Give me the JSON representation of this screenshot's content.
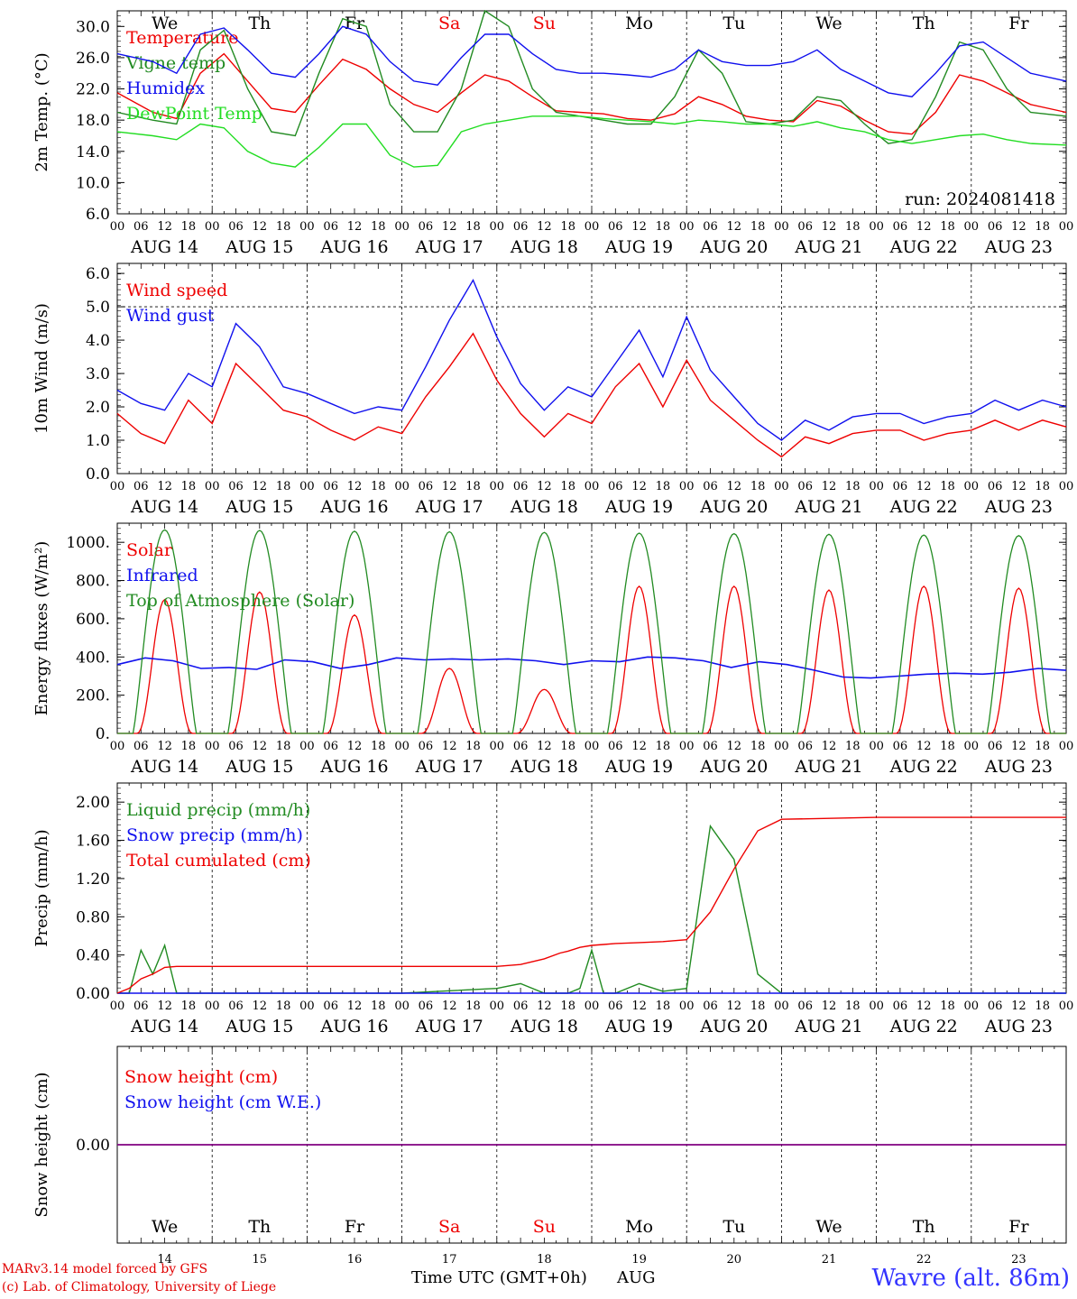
{
  "colors": {
    "red": "#ee0000",
    "green": "#228b22",
    "blue": "#1010ee",
    "light_green": "#22dd22",
    "purple": "#800080",
    "weekend": "#ee0000"
  },
  "days": {
    "weekday_labels": [
      "We",
      "Th",
      "Fr",
      "Sa",
      "Su",
      "Mo",
      "Tu",
      "We",
      "Th",
      "Fr"
    ],
    "weekend_flags": [
      false,
      false,
      false,
      true,
      true,
      false,
      false,
      false,
      false,
      false
    ],
    "date_labels": [
      "AUG 14",
      "AUG 15",
      "AUG 16",
      "AUG 17",
      "AUG 18",
      "AUG 19",
      "AUG 20",
      "AUG 21",
      "AUG 22",
      "AUG 23"
    ],
    "day_numbers": [
      "14",
      "15",
      "16",
      "17",
      "18",
      "19",
      "20",
      "21",
      "22",
      "23"
    ],
    "hour_ticks": [
      "00",
      "06",
      "12",
      "18"
    ],
    "final_tick": "00"
  },
  "footer": {
    "credit_line1": "MARv3.14 model forced by GFS",
    "credit_line2": "(c) Lab. of Climatology, University of Liege",
    "xaxis_title": "Time UTC (GMT+0h)",
    "xaxis_month": "AUG",
    "station": "Wavre (alt. 86m)"
  },
  "chart_data": [
    {
      "type": "line",
      "ylabel": "2m Temp. (°C)",
      "ylim": [
        6,
        32
      ],
      "yticks": [
        "30.0",
        "26.0",
        "22.0",
        "18.0",
        "14.0",
        "10.0",
        "6.0"
      ],
      "annotation": "run: 2024081418",
      "x": [
        0,
        9,
        15,
        21,
        27,
        33,
        39,
        45,
        51,
        57,
        63,
        69,
        75,
        81,
        87,
        93,
        99,
        105,
        111,
        117,
        123,
        129,
        135,
        141,
        147,
        153,
        159,
        165,
        171,
        177,
        183,
        189,
        195,
        201,
        207,
        213,
        219,
        225,
        231,
        240
      ],
      "series": [
        {
          "name": "Temperature",
          "color": "red",
          "values": [
            21.5,
            19.0,
            18.2,
            24.0,
            26.5,
            23.0,
            19.5,
            19.0,
            22.5,
            25.8,
            24.5,
            22.0,
            20.0,
            19.0,
            21.5,
            23.8,
            23.0,
            21.0,
            19.2,
            19.0,
            18.8,
            18.2,
            18.0,
            18.8,
            21.0,
            20.0,
            18.5,
            18.0,
            17.8,
            20.5,
            19.8,
            18.0,
            16.5,
            16.2,
            19.0,
            23.8,
            23.0,
            21.5,
            20.0,
            19.0
          ]
        },
        {
          "name": "Vigne temp",
          "color": "green",
          "values": [
            19.0,
            18.0,
            17.5,
            27.0,
            29.5,
            22.0,
            16.5,
            16.0,
            24.0,
            31.0,
            30.0,
            20.0,
            16.5,
            16.5,
            22.0,
            32.0,
            30.0,
            22.0,
            19.0,
            18.5,
            18.0,
            17.5,
            17.5,
            21.0,
            27.0,
            24.0,
            17.8,
            17.5,
            18.0,
            21.0,
            20.5,
            17.5,
            15.0,
            15.5,
            21.0,
            28.0,
            27.0,
            22.0,
            19.0,
            18.5
          ]
        },
        {
          "name": "Humidex",
          "color": "blue",
          "values": [
            26.5,
            25.5,
            24.0,
            29.0,
            29.8,
            27.0,
            24.0,
            23.5,
            26.5,
            30.0,
            29.0,
            25.5,
            23.0,
            22.5,
            26.0,
            29.0,
            29.0,
            26.5,
            24.5,
            24.0,
            24.0,
            23.8,
            23.5,
            24.5,
            27.0,
            25.5,
            25.0,
            25.0,
            25.5,
            27.0,
            24.5,
            23.0,
            21.5,
            21.0,
            24.0,
            27.5,
            28.0,
            26.0,
            24.0,
            23.0
          ]
        },
        {
          "name": "DewPoint Temp",
          "color": "light_green",
          "values": [
            16.5,
            16.0,
            15.5,
            17.5,
            17.0,
            14.0,
            12.5,
            12.0,
            14.5,
            17.5,
            17.5,
            13.5,
            12.0,
            12.2,
            16.5,
            17.5,
            18.0,
            18.5,
            18.5,
            18.5,
            18.2,
            18.0,
            17.8,
            17.5,
            18.0,
            17.8,
            17.5,
            17.5,
            17.2,
            17.8,
            17.0,
            16.5,
            15.5,
            15.0,
            15.5,
            16.0,
            16.2,
            15.5,
            15.0,
            14.8
          ]
        }
      ]
    },
    {
      "type": "line",
      "ylabel": "10m Wind (m/s)",
      "ylim": [
        0,
        6.3
      ],
      "yticks": [
        "6.0",
        "5.0",
        "4.0",
        "3.0",
        "2.0",
        "1.0",
        "0.0"
      ],
      "reference_line": 5.0,
      "x": [
        0,
        6,
        12,
        18,
        24,
        30,
        36,
        42,
        48,
        54,
        60,
        66,
        72,
        78,
        84,
        90,
        96,
        102,
        108,
        114,
        120,
        126,
        132,
        138,
        144,
        150,
        156,
        162,
        168,
        174,
        180,
        186,
        192,
        198,
        204,
        210,
        216,
        222,
        228,
        234,
        240
      ],
      "series": [
        {
          "name": "Wind speed",
          "color": "red",
          "values": [
            1.8,
            1.2,
            0.9,
            2.2,
            1.5,
            3.3,
            2.6,
            1.9,
            1.7,
            1.3,
            1.0,
            1.4,
            1.2,
            2.3,
            3.2,
            4.2,
            2.8,
            1.8,
            1.1,
            1.8,
            1.5,
            2.6,
            3.3,
            2.0,
            3.4,
            2.2,
            1.6,
            1.0,
            0.5,
            1.1,
            0.9,
            1.2,
            1.3,
            1.3,
            1.0,
            1.2,
            1.3,
            1.6,
            1.3,
            1.6,
            1.4
          ]
        },
        {
          "name": "Wind gust",
          "color": "blue",
          "values": [
            2.5,
            2.1,
            1.9,
            3.0,
            2.6,
            4.5,
            3.8,
            2.6,
            2.4,
            2.1,
            1.8,
            2.0,
            1.9,
            3.2,
            4.6,
            5.8,
            4.1,
            2.7,
            1.9,
            2.6,
            2.3,
            3.3,
            4.3,
            2.9,
            4.7,
            3.1,
            2.3,
            1.5,
            1.0,
            1.6,
            1.3,
            1.7,
            1.8,
            1.8,
            1.5,
            1.7,
            1.8,
            2.2,
            1.9,
            2.2,
            2.0
          ]
        }
      ]
    },
    {
      "type": "line",
      "ylabel": "Energy fluxes (W/m²)",
      "ylim": [
        0,
        1100
      ],
      "yticks": [
        "1000.",
        "800.",
        "600.",
        "400.",
        "200.",
        "0."
      ],
      "series": [
        {
          "name": "Solar",
          "color": "red",
          "daily_peaks": [
            700,
            740,
            620,
            340,
            230,
            770,
            770,
            750,
            770,
            760
          ]
        },
        {
          "name": "Infrared",
          "color": "blue",
          "values": [
            360,
            395,
            380,
            340,
            345,
            335,
            385,
            375,
            340,
            360,
            395,
            385,
            390,
            385,
            390,
            380,
            360,
            380,
            375,
            400,
            395,
            380,
            345,
            375,
            360,
            330,
            295,
            290,
            300,
            310,
            315,
            310,
            320,
            340,
            330
          ]
        },
        {
          "name": "Top of Atmosphere (Solar)",
          "color": "green",
          "daily_peaks": [
            1065,
            1062,
            1058,
            1055,
            1052,
            1048,
            1045,
            1042,
            1038,
            1035
          ]
        }
      ]
    },
    {
      "type": "line",
      "ylabel": "Precip (mm/h)",
      "ylim": [
        0,
        2.2
      ],
      "yticks": [
        "2.00",
        "1.60",
        "1.20",
        "0.80",
        "0.40",
        "0.00"
      ],
      "x": [
        0,
        3,
        6,
        9,
        12,
        15,
        18,
        24,
        48,
        72,
        96,
        102,
        108,
        112,
        114,
        117,
        120,
        123,
        126,
        132,
        138,
        144,
        150,
        156,
        162,
        168,
        180,
        192,
        204,
        216,
        240
      ],
      "series": [
        {
          "name": "Liquid precip (mm/h)",
          "color": "green",
          "values": [
            0.0,
            0.0,
            0.45,
            0.2,
            0.5,
            0.0,
            0.0,
            0.0,
            0.0,
            0.0,
            0.05,
            0.1,
            0.0,
            0.0,
            0.0,
            0.05,
            0.45,
            0.0,
            0.0,
            0.1,
            0.02,
            0.05,
            1.75,
            1.4,
            0.2,
            0.0,
            0.0,
            0.0,
            0.0,
            0.0,
            0.0
          ]
        },
        {
          "name": "Snow precip (mm/h)",
          "color": "blue",
          "values": [
            0,
            0,
            0,
            0,
            0,
            0,
            0,
            0,
            0,
            0,
            0,
            0,
            0,
            0,
            0,
            0,
            0,
            0,
            0,
            0,
            0,
            0,
            0,
            0,
            0,
            0,
            0,
            0,
            0,
            0,
            0
          ]
        },
        {
          "name": "Total cumulated (cm)",
          "color": "red",
          "values": [
            0.0,
            0.05,
            0.15,
            0.2,
            0.27,
            0.28,
            0.28,
            0.28,
            0.28,
            0.28,
            0.28,
            0.3,
            0.36,
            0.42,
            0.44,
            0.48,
            0.5,
            0.51,
            0.52,
            0.53,
            0.54,
            0.56,
            0.85,
            1.3,
            1.7,
            1.82,
            1.83,
            1.84,
            1.84,
            1.84,
            1.84
          ]
        }
      ]
    },
    {
      "type": "line",
      "ylabel": "Snow height (cm)",
      "ylim": [
        -1,
        1
      ],
      "yticks": [
        "0.00"
      ],
      "series": [
        {
          "name": "Snow height (cm)",
          "color": "red",
          "values": [
            0,
            0
          ]
        },
        {
          "name": "Snow height (cm W.E.)",
          "color": "blue",
          "values": [
            0,
            0
          ]
        }
      ]
    }
  ]
}
